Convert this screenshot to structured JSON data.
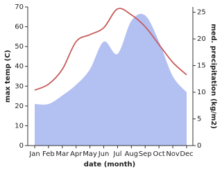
{
  "chart_data": {
    "type": "line_area",
    "categories": [
      "Jan",
      "Feb",
      "Mar",
      "Apr",
      "May",
      "Jun",
      "Jul",
      "Aug",
      "Sep",
      "Oct",
      "Nov",
      "Dec"
    ],
    "xlabel": "date (month)",
    "ylabel": "max temp (C)",
    "y2label": "med. precipitation (kg/m2)",
    "ylim": [
      0,
      70
    ],
    "yticks": [
      0,
      10,
      20,
      30,
      40,
      50,
      60,
      70
    ],
    "y2lim": [
      0,
      26
    ],
    "y2ticks": [
      0,
      5,
      10,
      15,
      20,
      25
    ],
    "series": [
      {
        "name": "max temp",
        "kind": "line",
        "color": "#c85a5a",
        "values": [
          28,
          31,
          38.5,
          52.5,
          56,
          59.5,
          69,
          66,
          60,
          51,
          42,
          35.7
        ]
      },
      {
        "name": "med. precipitation",
        "kind": "area",
        "axis": "y2",
        "color": "#b3c0f2",
        "values": [
          7.8,
          7.8,
          9.4,
          11.4,
          14.3,
          19.5,
          17.2,
          23.4,
          24.4,
          19.5,
          13,
          10
        ]
      }
    ]
  }
}
